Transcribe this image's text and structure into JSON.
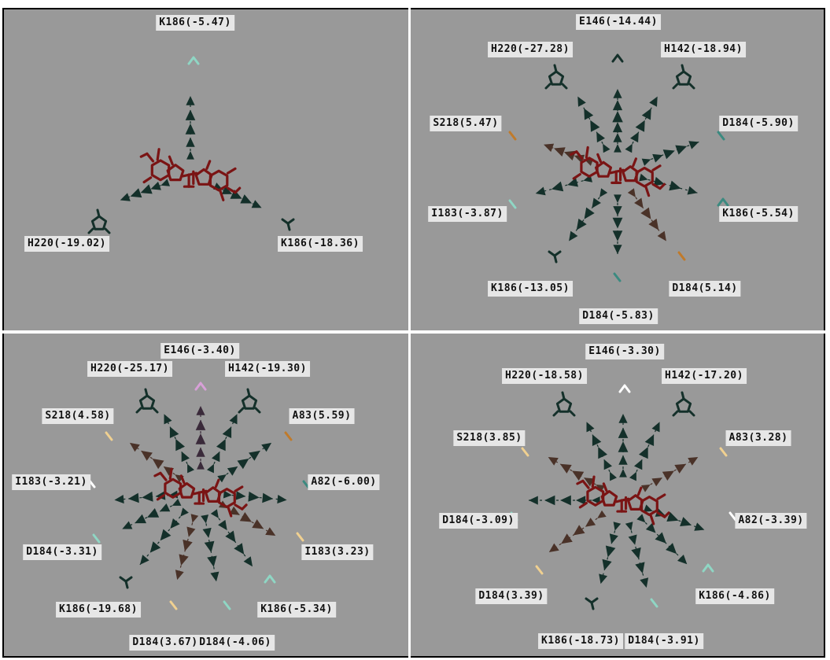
{
  "colors": {
    "background": "#999999",
    "ligand": "#7a1414",
    "arrow_favorable": "#14302a",
    "arrow_unfavorable": "#4a3228",
    "label_bg": "#e6e6e6"
  },
  "panels": [
    {
      "labels": [
        {
          "text": "K186(-5.47)"
        },
        {
          "text": "H220(-19.02)"
        },
        {
          "text": "K186(-18.36)"
        }
      ]
    },
    {
      "labels": [
        {
          "text": "E146(-14.44)"
        },
        {
          "text": "H220(-27.28)"
        },
        {
          "text": "H142(-18.94)"
        },
        {
          "text": "S218(5.47)"
        },
        {
          "text": "D184(-5.90)"
        },
        {
          "text": "I183(-3.87)"
        },
        {
          "text": "K186(-5.54)"
        },
        {
          "text": "K186(-13.05)"
        },
        {
          "text": "D184(5.14)"
        },
        {
          "text": "D184(-5.83)"
        }
      ]
    },
    {
      "labels": [
        {
          "text": "E146(-3.40)"
        },
        {
          "text": "H220(-25.17)"
        },
        {
          "text": "H142(-19.30)"
        },
        {
          "text": "S218(4.58)"
        },
        {
          "text": "A83(5.59)"
        },
        {
          "text": "I183(-3.21)"
        },
        {
          "text": "A82(-6.00)"
        },
        {
          "text": "D184(-3.31)"
        },
        {
          "text": "I183(3.23)"
        },
        {
          "text": "K186(-19.68)"
        },
        {
          "text": "K186(-5.34)"
        },
        {
          "text": "D184(3.67)"
        },
        {
          "text": "D184(-4.06)"
        }
      ]
    },
    {
      "labels": [
        {
          "text": "E146(-3.30)"
        },
        {
          "text": "H220(-18.58)"
        },
        {
          "text": "H142(-17.20)"
        },
        {
          "text": "S218(3.85)"
        },
        {
          "text": "A83(3.28)"
        },
        {
          "text": "D184(-3.09)"
        },
        {
          "text": "A82(-3.39)"
        },
        {
          "text": "D184(3.39)"
        },
        {
          "text": "K186(-4.86)"
        },
        {
          "text": "K186(-18.73)"
        },
        {
          "text": "D184(-3.91)"
        }
      ]
    }
  ]
}
